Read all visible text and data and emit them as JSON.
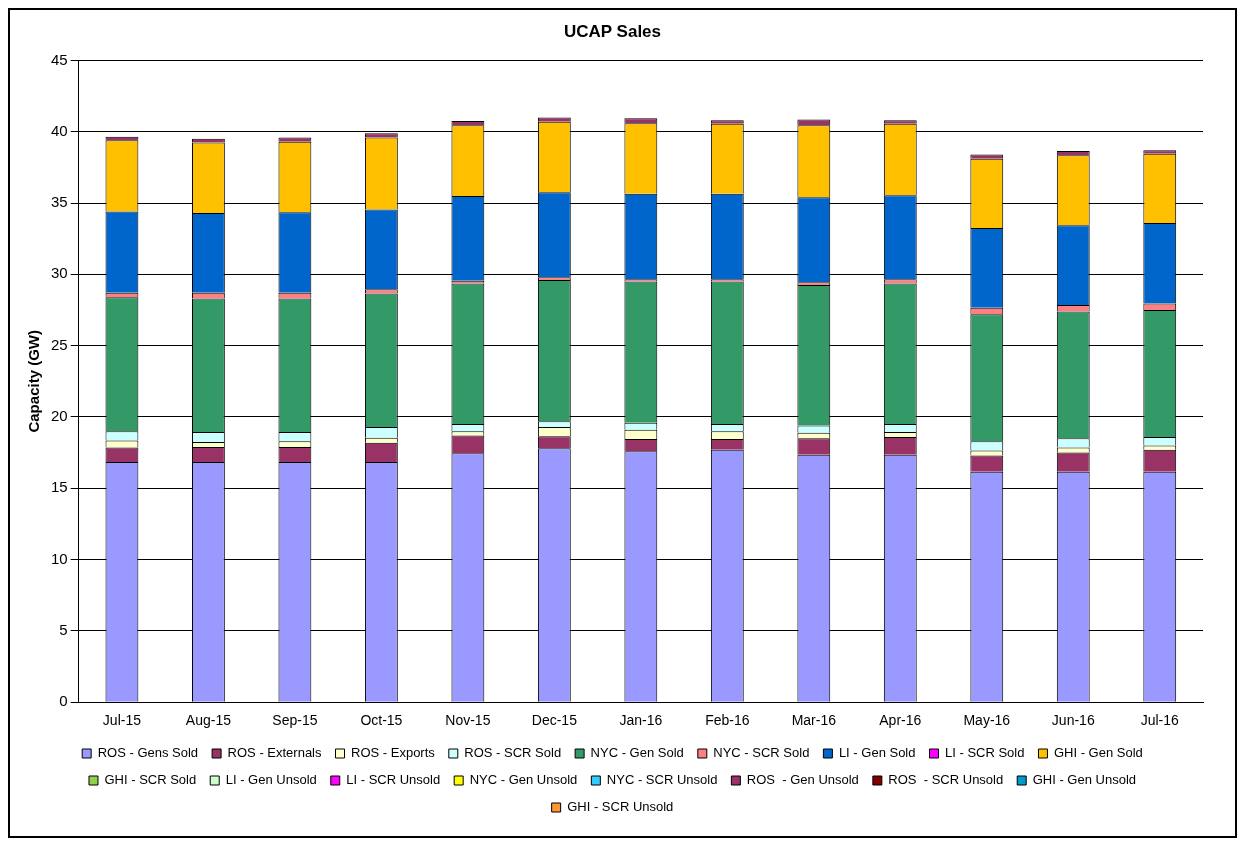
{
  "chart_data": {
    "type": "bar",
    "title": "UCAP Sales",
    "ylabel": "Capacity (GW)",
    "stacked": true,
    "grid": "y",
    "legend": "bottom",
    "categories": [
      "Jul-15",
      "Aug-15",
      "Sep-15",
      "Oct-15",
      "Nov-15",
      "Dec-15",
      "Jan-16",
      "Feb-16",
      "Mar-16",
      "Apr-16",
      "May-16",
      "Jun-16",
      "Jul-16"
    ],
    "ylim": [
      0,
      45
    ],
    "yticks": [
      0,
      5,
      10,
      15,
      20,
      25,
      30,
      35,
      40,
      45
    ],
    "series": [
      {
        "name": "ROS - Gens Sold",
        "color": "#9999ff",
        "values": [
          16.85,
          16.85,
          16.85,
          16.85,
          17.45,
          17.8,
          17.6,
          17.7,
          17.35,
          17.35,
          16.15,
          16.15,
          16.15
        ]
      },
      {
        "name": "ROS - Externals",
        "color": "#993366",
        "values": [
          1.0,
          1.05,
          1.05,
          1.35,
          1.25,
          0.85,
          0.85,
          0.75,
          1.15,
          1.25,
          1.15,
          1.35,
          1.55
        ]
      },
      {
        "name": "ROS - Exports",
        "color": "#ffffcc",
        "values": [
          0.5,
          0.35,
          0.4,
          0.35,
          0.3,
          0.65,
          0.65,
          0.55,
          0.4,
          0.35,
          0.35,
          0.35,
          0.3
        ]
      },
      {
        "name": "ROS - SCR Sold",
        "color": "#ccffff",
        "values": [
          0.65,
          0.7,
          0.65,
          0.75,
          0.5,
          0.4,
          0.5,
          0.5,
          0.5,
          0.55,
          0.65,
          0.65,
          0.6
        ]
      },
      {
        "name": "NYC - Gen Sold",
        "color": "#339966",
        "values": [
          9.4,
          9.35,
          9.35,
          9.35,
          9.85,
          9.9,
          9.9,
          10.0,
          9.85,
          9.85,
          8.9,
          8.9,
          8.9
        ]
      },
      {
        "name": "NYC - SCR Sold",
        "color": "#ff8080",
        "values": [
          0.3,
          0.4,
          0.4,
          0.3,
          0.2,
          0.2,
          0.15,
          0.15,
          0.2,
          0.3,
          0.45,
          0.45,
          0.45
        ]
      },
      {
        "name": "LI - Gen Sold",
        "color": "#0066cc",
        "values": [
          5.7,
          5.6,
          5.65,
          5.6,
          5.95,
          5.95,
          6.0,
          6.0,
          5.95,
          5.9,
          5.6,
          5.6,
          5.65
        ]
      },
      {
        "name": "LI - SCR Sold",
        "color": "#ff00ff",
        "values": [
          0,
          0,
          0,
          0,
          0,
          0,
          0,
          0,
          0,
          0,
          0,
          0,
          0
        ]
      },
      {
        "name": "GHI - Gen Sold",
        "color": "#ffc000",
        "values": [
          5.0,
          4.95,
          4.95,
          5.05,
          4.95,
          4.95,
          4.95,
          4.9,
          5.05,
          5.0,
          4.85,
          4.9,
          4.85
        ]
      },
      {
        "name": "GHI - SCR Sold",
        "color": "#92d050",
        "values": [
          0,
          0,
          0,
          0,
          0,
          0,
          0,
          0,
          0,
          0,
          0,
          0,
          0
        ]
      },
      {
        "name": "LI - Gen Unsold",
        "color": "#ccffcc",
        "values": [
          0,
          0,
          0,
          0,
          0,
          0,
          0,
          0,
          0,
          0,
          0,
          0,
          0
        ]
      },
      {
        "name": "LI - SCR Unsold",
        "color": "#ff00ff",
        "values": [
          0,
          0,
          0,
          0,
          0,
          0,
          0,
          0,
          0,
          0,
          0,
          0,
          0
        ]
      },
      {
        "name": "NYC - Gen Unsold",
        "color": "#ffff00",
        "values": [
          0,
          0,
          0,
          0,
          0,
          0,
          0,
          0,
          0,
          0,
          0,
          0,
          0
        ]
      },
      {
        "name": "NYC - SCR Unsold",
        "color": "#33ccff",
        "values": [
          0,
          0,
          0,
          0,
          0,
          0,
          0,
          0,
          0,
          0,
          0,
          0,
          0
        ]
      },
      {
        "name": "ROS  - Gen Unsold",
        "color": "#993366",
        "values": [
          0.25,
          0.25,
          0.3,
          0.3,
          0.3,
          0.3,
          0.35,
          0.25,
          0.4,
          0.25,
          0.3,
          0.3,
          0.25
        ]
      },
      {
        "name": "ROS  - SCR Unsold",
        "color": "#800000",
        "values": [
          0,
          0,
          0,
          0,
          0,
          0,
          0,
          0,
          0,
          0,
          0,
          0,
          0
        ]
      },
      {
        "name": "GHI - Gen Unsold",
        "color": "#0099cc",
        "values": [
          0,
          0,
          0,
          0,
          0,
          0,
          0,
          0,
          0,
          0,
          0,
          0,
          0
        ]
      },
      {
        "name": "GHI - SCR Unsold",
        "color": "#ff9933",
        "values": [
          0,
          0,
          0,
          0,
          0,
          0,
          0,
          0,
          0,
          0,
          0,
          0,
          0
        ]
      }
    ]
  }
}
